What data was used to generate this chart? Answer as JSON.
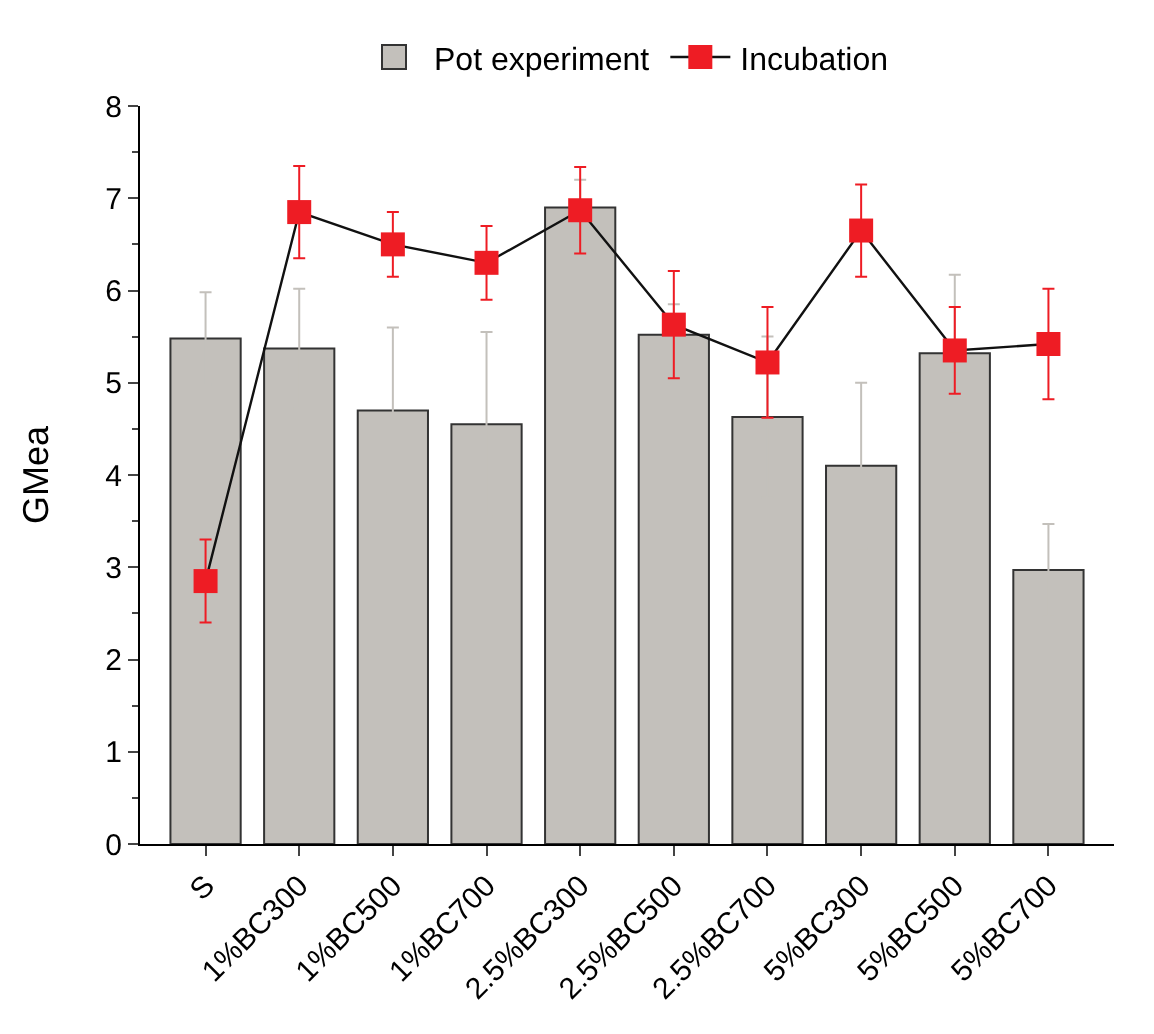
{
  "chart_data": {
    "type": "bar",
    "ylabel": "GMea",
    "categories": [
      "S",
      "1%BC300",
      "1%BC500",
      "1%BC700",
      "2.5%BC300",
      "2.5%BC500",
      "2.5%BC700",
      "5%BC300",
      "5%BC500",
      "5%BC700"
    ],
    "series": [
      {
        "name": "Pot experiment",
        "color": "#c3c0bb",
        "values": [
          5.48,
          5.37,
          4.7,
          4.55,
          6.9,
          5.52,
          4.63,
          4.1,
          5.32,
          2.97
        ],
        "errors": [
          0.5,
          0.65,
          0.9,
          1.0,
          0.3,
          0.33,
          0.87,
          0.9,
          0.85,
          0.5
        ]
      },
      {
        "name": "Incubation",
        "type": "line",
        "color": "#ee1c24",
        "marker": "square",
        "values": [
          2.85,
          6.85,
          6.5,
          6.3,
          6.87,
          5.63,
          5.22,
          6.65,
          5.35,
          5.42
        ],
        "errors": [
          0.45,
          0.5,
          0.35,
          0.4,
          0.47,
          0.58,
          0.6,
          0.5,
          0.47,
          0.6
        ]
      }
    ],
    "ylim": [
      0,
      8
    ],
    "yticks": [
      0,
      1,
      2,
      3,
      4,
      5,
      6,
      7,
      8
    ],
    "grid": false,
    "legend": "top"
  }
}
